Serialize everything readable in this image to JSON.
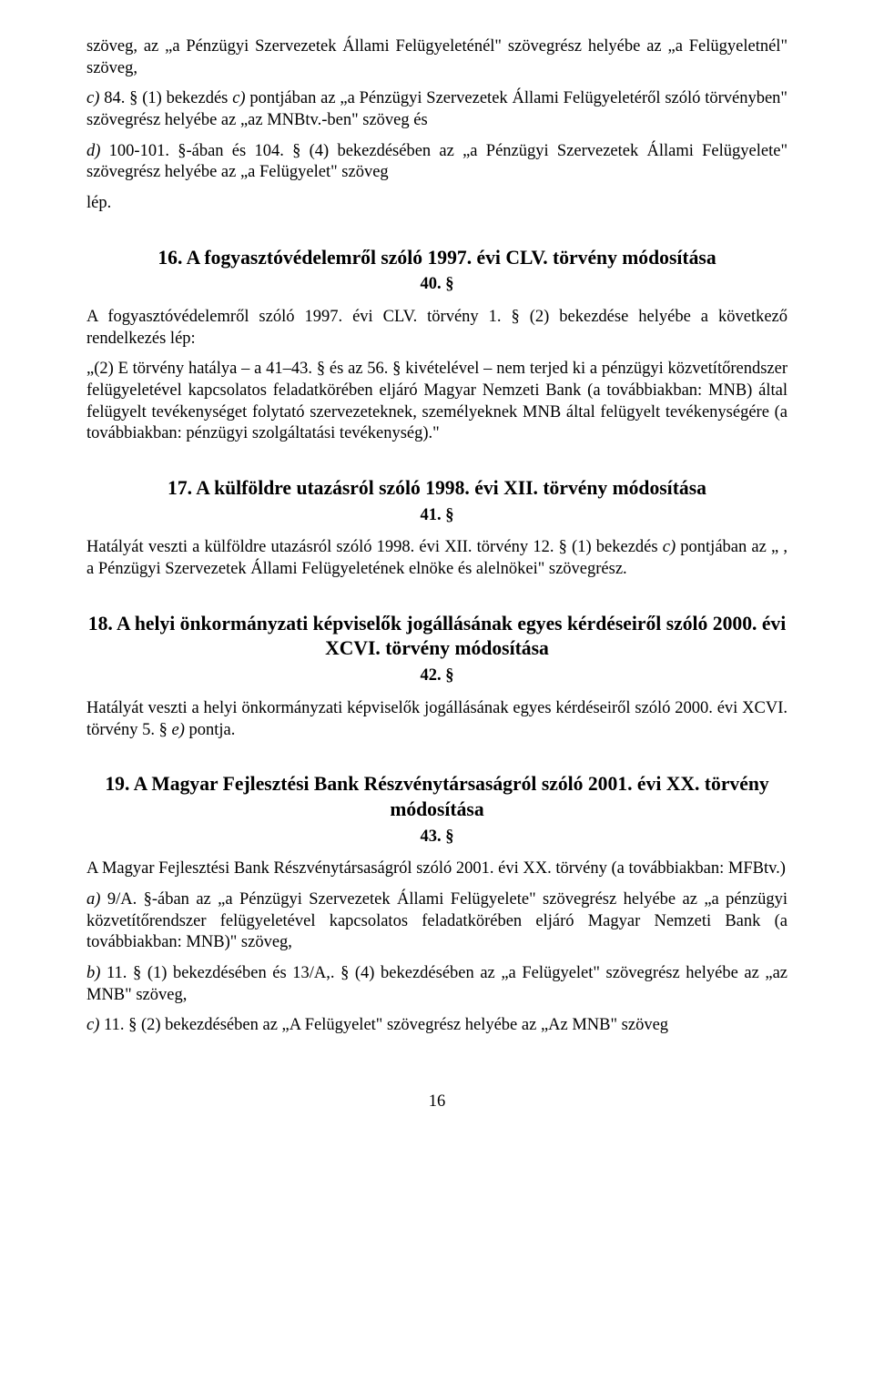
{
  "top": {
    "p1": "szöveg, az „a Pénzügyi Szervezetek Állami Felügyeleténél\" szövegrész helyébe az „a Felügyeletnél\" szöveg,",
    "p2_a": "c)",
    "p2_b": " 84. § (1) bekezdés ",
    "p2_c": "c)",
    "p2_d": " pontjában az „a Pénzügyi Szervezetek Állami Felügyeletéről szóló törvényben\" szövegrész helyébe az „az MNBtv.-ben\" szöveg és",
    "p3_a": "d)",
    "p3_b": " 100-101. §-ában és 104. § (4) bekezdésében az „a Pénzügyi Szervezetek Állami Felügyelete\" szövegrész helyébe az „a Felügyelet\" szöveg",
    "p4": "lép."
  },
  "s16": {
    "title": "16. A fogyasztóvédelemről szóló 1997. évi CLV. törvény módosítása",
    "num": "40. §",
    "p1": "A fogyasztóvédelemről szóló 1997. évi CLV. törvény 1. § (2) bekezdése helyébe a következő rendelkezés lép:",
    "p2": "„(2) E törvény hatálya – a 41–43. § és az 56. § kivételével – nem terjed ki a pénzügyi közvetítőrendszer felügyeletével kapcsolatos feladatkörében eljáró Magyar Nemzeti Bank (a továbbiakban: MNB) által felügyelt tevékenységet folytató szervezeteknek, személyeknek MNB által felügyelt tevékenységére (a továbbiakban: pénzügyi szolgáltatási tevékenység).\""
  },
  "s17": {
    "title": "17. A külföldre utazásról szóló 1998. évi XII. törvény módosítása",
    "num": "41. §",
    "p1_a": "Hatályát veszti a külföldre utazásról szóló 1998. évi XII. törvény 12. § (1) bekezdés ",
    "p1_b": "c)",
    "p1_c": " pontjában az „ , a Pénzügyi Szervezetek Állami Felügyeletének elnöke és alelnökei\" szövegrész."
  },
  "s18": {
    "title": "18. A helyi önkormányzati képviselők jogállásának egyes kérdéseiről szóló 2000. évi XCVI. törvény módosítása",
    "num": "42. §",
    "p1_a": "Hatályát veszti a helyi önkormányzati képviselők jogállásának egyes kérdéseiről szóló 2000. évi XCVI. törvény 5. § ",
    "p1_b": "e)",
    "p1_c": " pontja."
  },
  "s19": {
    "title": "19. A Magyar Fejlesztési Bank Részvénytársaságról szóló 2001. évi XX. törvény módosítása",
    "num": "43. §",
    "p1": "A Magyar Fejlesztési Bank Részvénytársaságról szóló 2001. évi XX. törvény (a továbbiakban: MFBtv.)",
    "p2_a": "a)",
    "p2_b": " 9/A. §-ában az „a Pénzügyi Szervezetek Állami Felügyelete\" szövegrész helyébe az „a pénzügyi közvetítőrendszer felügyeletével kapcsolatos feladatkörében eljáró Magyar Nemzeti Bank (a továbbiakban: MNB)\" szöveg,",
    "p3_a": "b)",
    "p3_b": " 11. § (1) bekezdésében és 13/A,. § (4) bekezdésében az „a Felügyelet\" szövegrész helyébe az „az MNB\" szöveg,",
    "p4_a": "c)",
    "p4_b": " 11. § (2) bekezdésében az „A Felügyelet\" szövegrész helyébe az „Az MNB\" szöveg"
  },
  "pageNumber": "16"
}
